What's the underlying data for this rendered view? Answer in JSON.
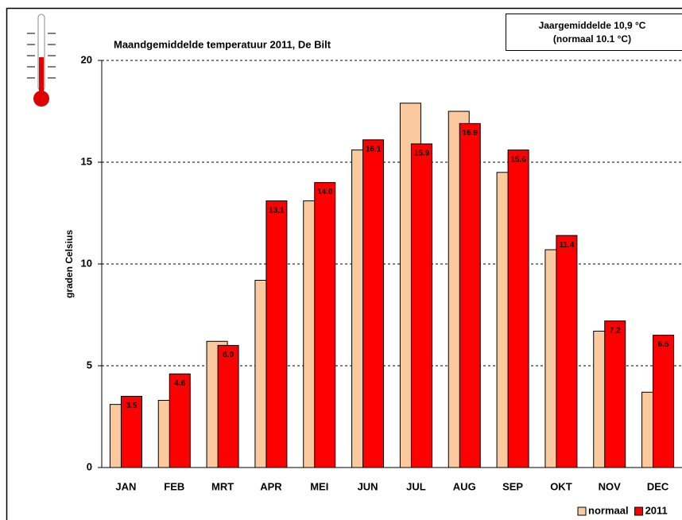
{
  "chart_data": {
    "type": "bar",
    "title": "Maandgemiddelde temperatuur 2011, De Bilt",
    "annotations": [
      "Jaargemiddelde 10,9 °C",
      "(normaal 10.1 °C)"
    ],
    "y_label": "graden Celsius",
    "categories": [
      "JAN",
      "FEB",
      "MRT",
      "APR",
      "MEI",
      "JUN",
      "JUL",
      "AUG",
      "SEP",
      "OKT",
      "NOV",
      "DEC"
    ],
    "series": [
      {
        "name": "normaal",
        "color": "#fac99d",
        "values": [
          3.1,
          3.3,
          6.2,
          9.2,
          13.1,
          15.6,
          17.9,
          17.5,
          14.5,
          10.7,
          6.7,
          3.7
        ]
      },
      {
        "name": "2011",
        "color": "#ff0000",
        "values": [
          3.5,
          4.6,
          6.0,
          13.1,
          14.0,
          16.1,
          15.9,
          16.9,
          15.6,
          11.4,
          7.2,
          6.5
        ],
        "value_labels": [
          "3.5",
          "4.6",
          "6.0",
          "13.1",
          "14.0",
          "16.1",
          "15.9",
          "16.9",
          "15.6",
          "11.4",
          "7.2",
          "6.5"
        ]
      }
    ],
    "ylim": [
      0,
      20
    ],
    "yticks": [
      0,
      5,
      10,
      15,
      20
    ],
    "grid": true,
    "legend": "bottom-right"
  }
}
